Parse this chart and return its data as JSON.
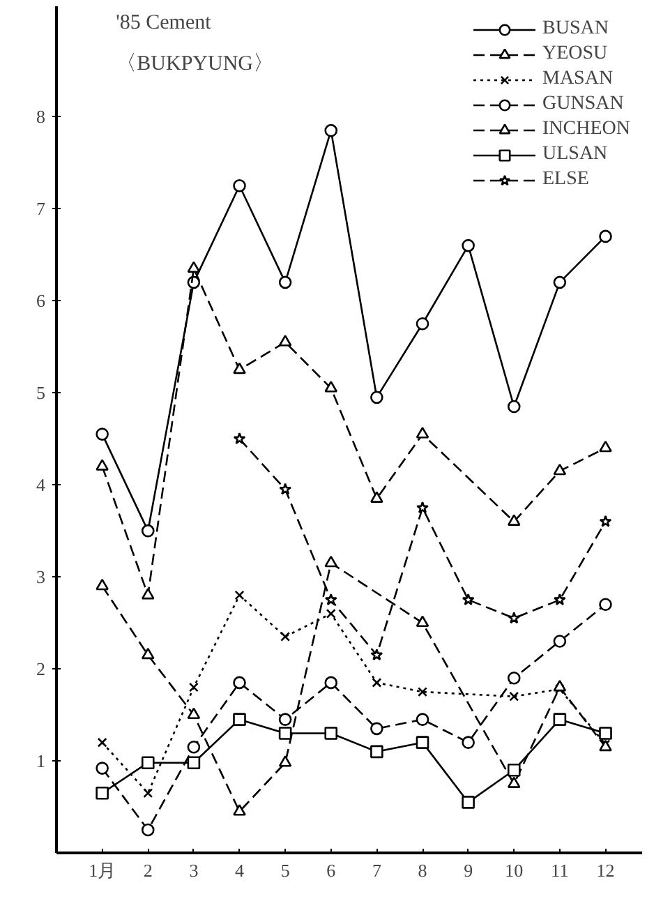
{
  "chart_data": {
    "type": "line",
    "title": "'85 Cement",
    "subtitle": "〈BUKPYUNG〉",
    "x": [
      1,
      2,
      3,
      4,
      5,
      6,
      7,
      8,
      9,
      10,
      11,
      12
    ],
    "xlim": [
      0,
      12.8
    ],
    "ylim": [
      0,
      9.2
    ],
    "xticks": [
      {
        "value": 1,
        "label": "1月"
      },
      2,
      3,
      4,
      5,
      6,
      7,
      8,
      9,
      10,
      11,
      12
    ],
    "yticks": [
      1,
      2,
      3,
      4,
      5,
      6,
      7,
      8
    ],
    "grid": false,
    "legend": "top right",
    "series": [
      {
        "name": "BUSAN",
        "color": "#000000",
        "marker": "circle",
        "line_style": "solid",
        "values": [
          4.55,
          3.5,
          6.2,
          7.25,
          6.2,
          7.85,
          4.95,
          5.75,
          6.6,
          4.85,
          6.2,
          6.7
        ]
      },
      {
        "name": "YEOSU",
        "color": "#000000",
        "marker": "triangle",
        "line_style": "dashed",
        "x": [
          1,
          2,
          3,
          4,
          5,
          6,
          7,
          8,
          10,
          11,
          12
        ],
        "values": [
          4.2,
          2.8,
          6.35,
          5.25,
          5.55,
          5.05,
          3.85,
          4.55,
          3.6,
          4.15,
          4.4
        ]
      },
      {
        "name": "MASAN",
        "color": "#000000",
        "marker": "cross",
        "line_style": "dotted",
        "x": [
          1,
          2,
          3,
          4,
          5,
          6,
          7,
          8,
          10,
          11,
          12
        ],
        "values": [
          1.2,
          0.65,
          1.8,
          2.8,
          2.35,
          2.6,
          1.85,
          1.75,
          1.7,
          1.78,
          1.18
        ]
      },
      {
        "name": "GUNSAN",
        "color": "#000000",
        "marker": "circle",
        "line_style": "dashed",
        "values": [
          0.92,
          0.25,
          1.15,
          1.85,
          1.45,
          1.85,
          1.35,
          1.45,
          1.2,
          1.9,
          2.3,
          2.7
        ]
      },
      {
        "name": "INCHEON",
        "color": "#000000",
        "marker": "triangle",
        "line_style": "dashed",
        "x": [
          1,
          2,
          3,
          4,
          5,
          6,
          8,
          10,
          11,
          12
        ],
        "values": [
          2.9,
          2.15,
          1.5,
          0.45,
          0.98,
          3.15,
          2.5,
          0.75,
          1.8,
          1.15
        ]
      },
      {
        "name": "ULSAN",
        "color": "#000000",
        "marker": "square",
        "line_style": "solid",
        "values": [
          0.65,
          0.98,
          0.98,
          1.45,
          1.3,
          1.3,
          1.1,
          1.2,
          0.55,
          0.9,
          1.45,
          1.3
        ]
      },
      {
        "name": "ELSE",
        "color": "#000000",
        "marker": "star",
        "line_style": "dashed",
        "x": [
          4,
          5,
          6,
          7,
          8,
          9,
          10,
          11,
          12
        ],
        "values": [
          4.5,
          3.95,
          2.75,
          2.15,
          3.75,
          2.75,
          2.55,
          2.75,
          3.6
        ]
      }
    ]
  }
}
